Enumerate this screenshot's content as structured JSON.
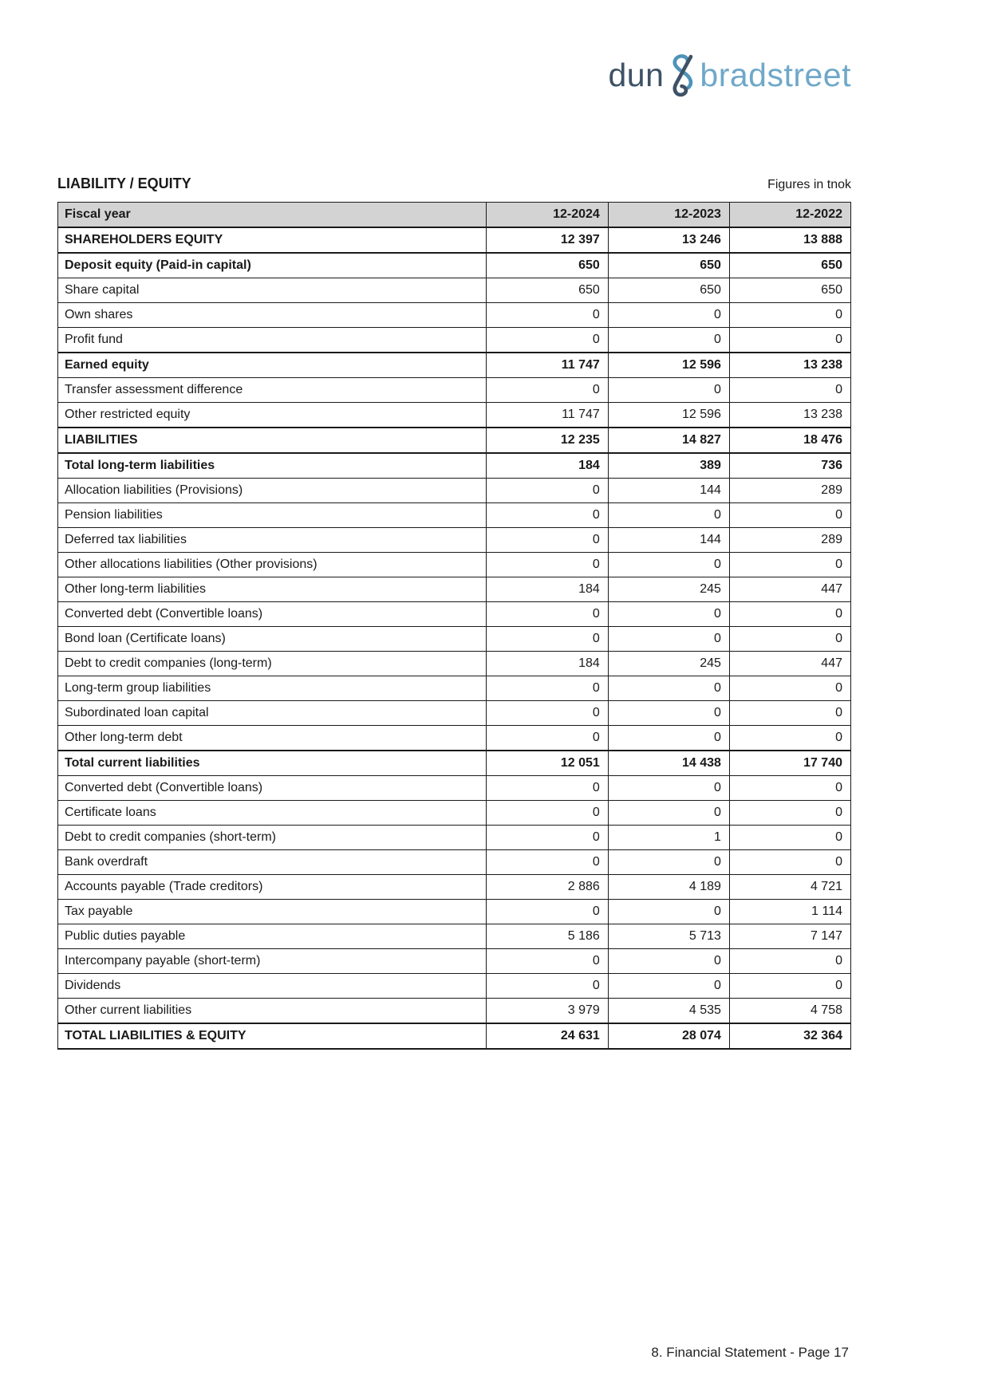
{
  "logo": {
    "part1": "dun",
    "part2": "bradstreet",
    "colors": {
      "dun": "#3e5266",
      "bradstreet": "#6fa8c9",
      "ampersand_loop": "#4e93b9",
      "ampersand_stroke": "#3e5266"
    }
  },
  "header": {
    "title": "LIABILITY / EQUITY",
    "units_note": "Figures in tnok"
  },
  "table": {
    "header": {
      "label": "Fiscal year",
      "columns": [
        "12-2024",
        "12-2023",
        "12-2022"
      ]
    },
    "header_bg": "#d3d3d3",
    "rows": [
      {
        "label": "SHAREHOLDERS EQUITY",
        "bold": true,
        "values": [
          "12 397",
          "13 246",
          "13 888"
        ]
      },
      {
        "label": "Deposit equity (Paid-in capital)",
        "bold": true,
        "values": [
          "650",
          "650",
          "650"
        ]
      },
      {
        "label": "Share capital",
        "bold": false,
        "values": [
          "650",
          "650",
          "650"
        ]
      },
      {
        "label": "Own shares",
        "bold": false,
        "values": [
          "0",
          "0",
          "0"
        ]
      },
      {
        "label": "Profit fund",
        "bold": false,
        "values": [
          "0",
          "0",
          "0"
        ]
      },
      {
        "label": "Earned equity",
        "bold": true,
        "values": [
          "11 747",
          "12 596",
          "13 238"
        ]
      },
      {
        "label": "Transfer assessment difference",
        "bold": false,
        "values": [
          "0",
          "0",
          "0"
        ]
      },
      {
        "label": "Other restricted equity",
        "bold": false,
        "values": [
          "11 747",
          "12 596",
          "13 238"
        ]
      },
      {
        "label": "LIABILITIES",
        "bold": true,
        "values": [
          "12 235",
          "14 827",
          "18 476"
        ]
      },
      {
        "label": "Total long-term liabilities",
        "bold": true,
        "values": [
          "184",
          "389",
          "736"
        ]
      },
      {
        "label": "Allocation liabilities (Provisions)",
        "bold": false,
        "values": [
          "0",
          "144",
          "289"
        ]
      },
      {
        "label": "Pension liabilities",
        "bold": false,
        "values": [
          "0",
          "0",
          "0"
        ]
      },
      {
        "label": "Deferred tax liabilities",
        "bold": false,
        "values": [
          "0",
          "144",
          "289"
        ]
      },
      {
        "label": "Other allocations liabilities (Other provisions)",
        "bold": false,
        "values": [
          "0",
          "0",
          "0"
        ]
      },
      {
        "label": "Other long-term liabilities",
        "bold": false,
        "values": [
          "184",
          "245",
          "447"
        ]
      },
      {
        "label": "Converted debt (Convertible loans)",
        "bold": false,
        "values": [
          "0",
          "0",
          "0"
        ]
      },
      {
        "label": "Bond loan (Certificate loans)",
        "bold": false,
        "values": [
          "0",
          "0",
          "0"
        ]
      },
      {
        "label": "Debt to credit companies (long-term)",
        "bold": false,
        "values": [
          "184",
          "245",
          "447"
        ]
      },
      {
        "label": "Long-term group liabilities",
        "bold": false,
        "values": [
          "0",
          "0",
          "0"
        ]
      },
      {
        "label": "Subordinated loan capital",
        "bold": false,
        "values": [
          "0",
          "0",
          "0"
        ]
      },
      {
        "label": "Other long-term debt",
        "bold": false,
        "values": [
          "0",
          "0",
          "0"
        ]
      },
      {
        "label": "Total current liabilities",
        "bold": true,
        "values": [
          "12 051",
          "14 438",
          "17 740"
        ]
      },
      {
        "label": "Converted debt (Convertible loans)",
        "bold": false,
        "values": [
          "0",
          "0",
          "0"
        ]
      },
      {
        "label": "Certificate loans",
        "bold": false,
        "values": [
          "0",
          "0",
          "0"
        ]
      },
      {
        "label": "Debt to credit companies (short-term)",
        "bold": false,
        "values": [
          "0",
          "1",
          "0"
        ]
      },
      {
        "label": "Bank overdraft",
        "bold": false,
        "values": [
          "0",
          "0",
          "0"
        ]
      },
      {
        "label": "Accounts payable (Trade creditors)",
        "bold": false,
        "values": [
          "2 886",
          "4 189",
          "4 721"
        ]
      },
      {
        "label": "Tax payable",
        "bold": false,
        "values": [
          "0",
          "0",
          "1 114"
        ]
      },
      {
        "label": "Public duties payable",
        "bold": false,
        "values": [
          "5 186",
          "5 713",
          "7 147"
        ]
      },
      {
        "label": "Intercompany payable (short-term)",
        "bold": false,
        "values": [
          "0",
          "0",
          "0"
        ]
      },
      {
        "label": "Dividends",
        "bold": false,
        "values": [
          "0",
          "0",
          "0"
        ]
      },
      {
        "label": "Other current liabilities",
        "bold": false,
        "values": [
          "3 979",
          "4 535",
          "4 758"
        ]
      },
      {
        "label": "TOTAL LIABILITIES & EQUITY",
        "bold": true,
        "values": [
          "24 631",
          "28 074",
          "32 364"
        ]
      }
    ]
  },
  "footer": {
    "text": "8. Financial Statement - Page 17"
  }
}
